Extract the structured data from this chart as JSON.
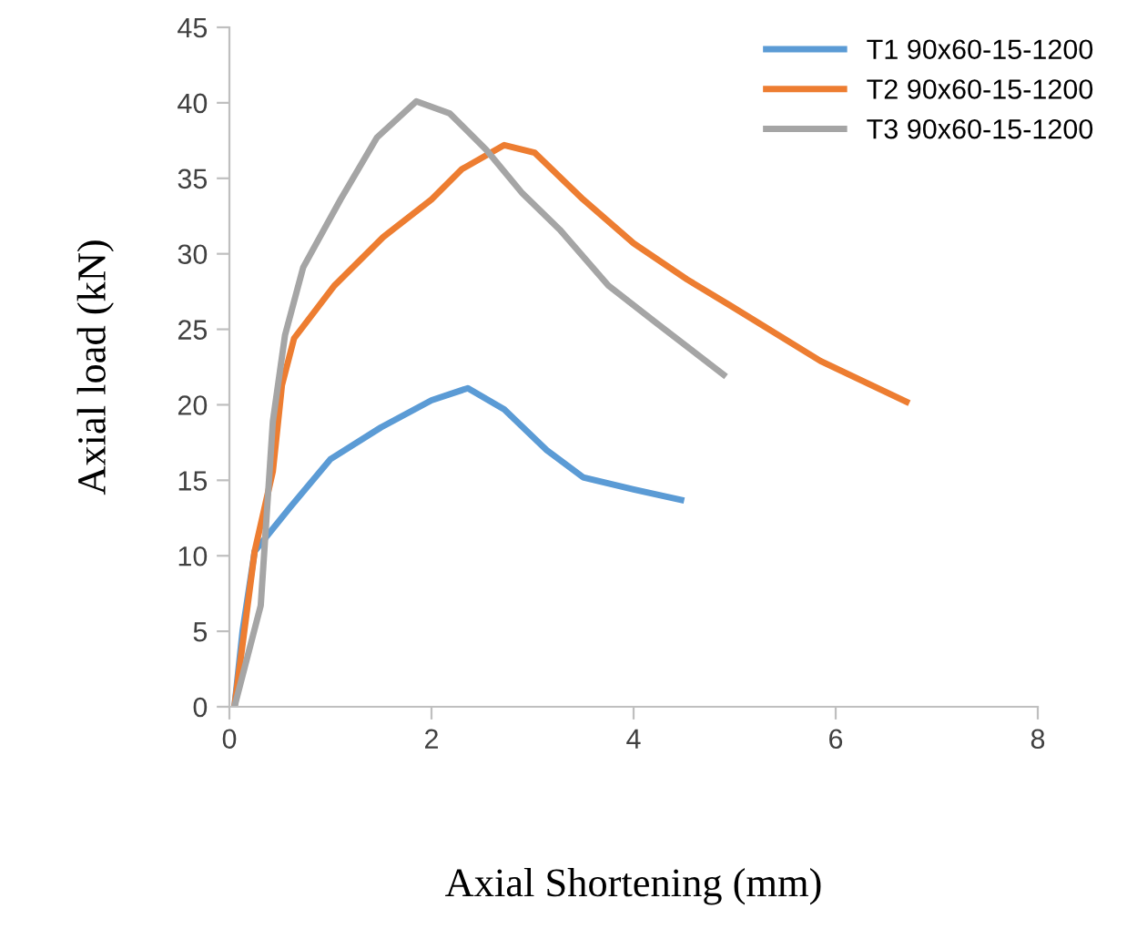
{
  "chart_data": {
    "type": "line",
    "xlabel": "Axial Shortening (mm)",
    "ylabel": "Axial load (kN)",
    "xlim": [
      0,
      8
    ],
    "ylim": [
      0,
      45
    ],
    "xticks": [
      0,
      2,
      4,
      6,
      8
    ],
    "yticks": [
      0,
      5,
      10,
      15,
      20,
      25,
      30,
      35,
      40,
      45
    ],
    "grid": false,
    "legend": "top right",
    "marker": "none",
    "line_style": "solid",
    "series": [
      {
        "name": "T1 90x60-15-1200",
        "color": "#5b9bd5",
        "x": [
          0.05,
          0.13,
          0.25,
          0.6,
          1.0,
          1.5,
          2.0,
          2.36,
          2.72,
          3.14,
          3.5,
          4.0,
          4.47
        ],
        "values": [
          0,
          5,
          10.3,
          13.2,
          16.4,
          18.5,
          20.3,
          21.1,
          19.7,
          17,
          15.2,
          14.4,
          13.7
        ]
      },
      {
        "name": "T2 90x60-15-1200",
        "color": "#ed7d31",
        "x": [
          0.05,
          0.25,
          0.43,
          0.52,
          0.64,
          1.04,
          1.52,
          2.0,
          2.3,
          2.72,
          3.02,
          3.5,
          4.0,
          4.53,
          4.95,
          5.85,
          6.7
        ],
        "values": [
          0,
          10.3,
          15.6,
          21.3,
          24.4,
          27.9,
          31.1,
          33.6,
          35.6,
          37.2,
          36.7,
          33.6,
          30.7,
          28.3,
          26.6,
          22.9,
          20.2
        ]
      },
      {
        "name": "T3 90x60-15-1200",
        "color": "#a5a5a5",
        "x": [
          0.05,
          0.31,
          0.43,
          0.55,
          0.73,
          1.1,
          1.46,
          1.85,
          2.18,
          2.54,
          2.9,
          3.27,
          3.75,
          4.23,
          4.89
        ],
        "values": [
          0,
          6.7,
          18.9,
          24.6,
          29.1,
          33.6,
          37.7,
          40.1,
          39.3,
          36.9,
          34,
          31.6,
          27.9,
          25.4,
          22
        ]
      }
    ]
  }
}
